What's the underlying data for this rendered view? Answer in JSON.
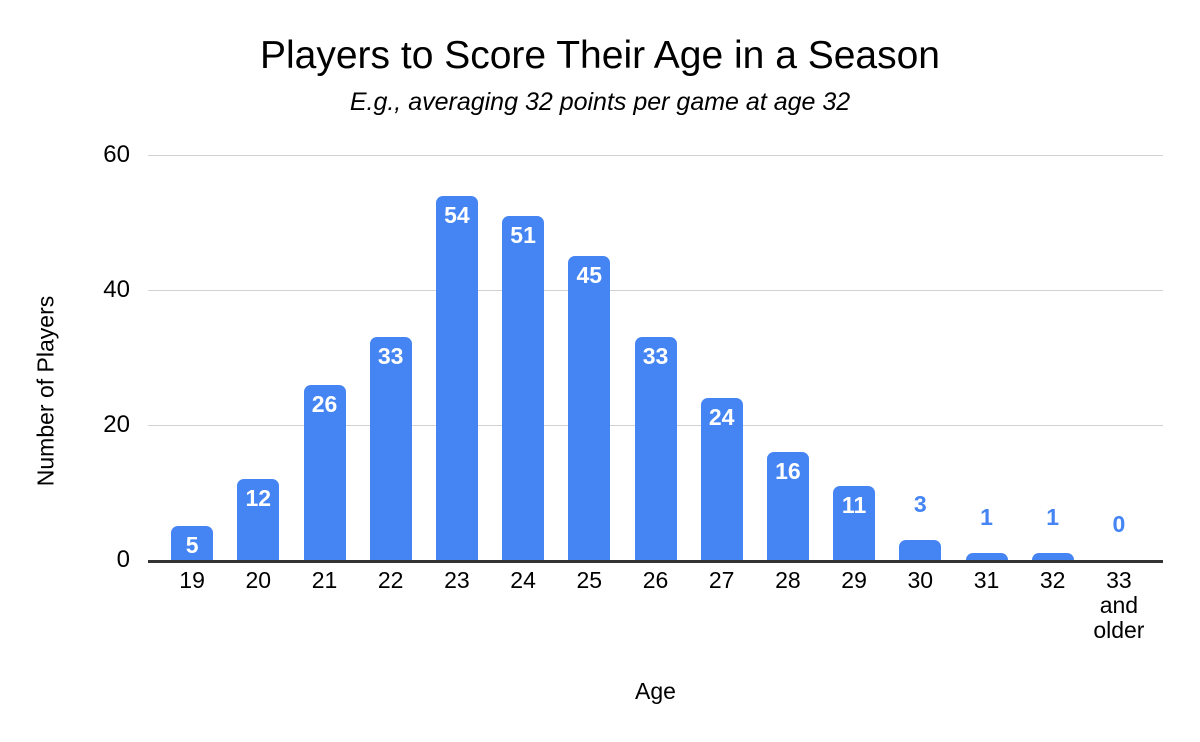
{
  "chart": {
    "title": "Players to Score Their Age in a Season",
    "subtitle": "E.g., averaging 32 points per game at age 32",
    "xlabel": "Age",
    "ylabel": "Number of Players"
  },
  "chart_data": {
    "type": "bar",
    "title": "Players to Score Their Age in a Season",
    "subtitle": "E.g., averaging 32 points per game at age 32",
    "xlabel": "Age",
    "ylabel": "Number of Players",
    "categories": [
      "19",
      "20",
      "21",
      "22",
      "23",
      "24",
      "25",
      "26",
      "27",
      "28",
      "29",
      "30",
      "31",
      "32",
      "33 and older"
    ],
    "values": [
      5,
      12,
      26,
      33,
      54,
      51,
      45,
      33,
      24,
      16,
      11,
      3,
      1,
      1,
      0
    ],
    "ylim": [
      0,
      60
    ],
    "yticks": [
      0,
      20,
      40,
      60
    ],
    "grid": true,
    "legend_position": "none",
    "bar_color": "#4484f3",
    "label_inside_color": "#ffffff",
    "label_outside_color": "#4484f3",
    "label_outside_max_value": 4,
    "gridline_color": "#d2d2d2",
    "axis_line_color": "#333333",
    "background_color": "#ffffff"
  }
}
